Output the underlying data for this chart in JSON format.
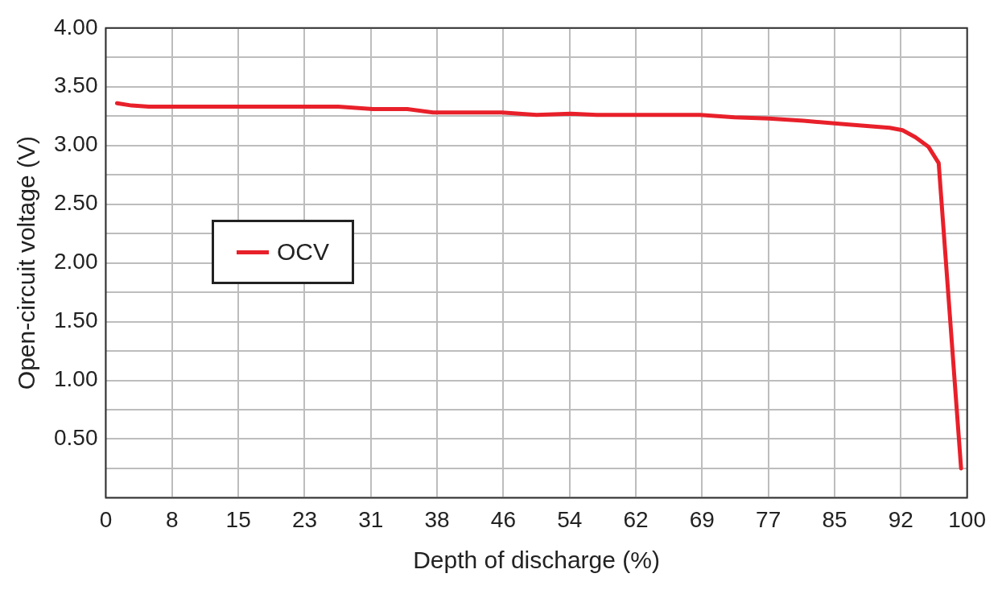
{
  "chart_data": {
    "type": "line",
    "xlabel": "Depth of discharge (%)",
    "ylabel": "Open-circuit voltage (V)",
    "xlim": [
      0,
      100
    ],
    "xticks": [
      {
        "value": 0,
        "label": "0"
      },
      {
        "value": 7.692,
        "label": "8"
      },
      {
        "value": 15.385,
        "label": "15"
      },
      {
        "value": 23.077,
        "label": "23"
      },
      {
        "value": 30.769,
        "label": "31"
      },
      {
        "value": 38.462,
        "label": "38"
      },
      {
        "value": 46.154,
        "label": "46"
      },
      {
        "value": 53.846,
        "label": "54"
      },
      {
        "value": 61.538,
        "label": "62"
      },
      {
        "value": 69.231,
        "label": "69"
      },
      {
        "value": 76.923,
        "label": "77"
      },
      {
        "value": 84.615,
        "label": "85"
      },
      {
        "value": 92.308,
        "label": "92"
      },
      {
        "value": 100,
        "label": "100"
      }
    ],
    "ylim": [
      0,
      4
    ],
    "yticks": [
      {
        "value": 0,
        "label": null
      },
      {
        "value": 0.25,
        "label": null
      },
      {
        "value": 0.5,
        "label": "0.50"
      },
      {
        "value": 0.75,
        "label": null
      },
      {
        "value": 1,
        "label": "1.00"
      },
      {
        "value": 1.25,
        "label": null
      },
      {
        "value": 1.5,
        "label": "1.50"
      },
      {
        "value": 1.75,
        "label": null
      },
      {
        "value": 2,
        "label": "2.00"
      },
      {
        "value": 2.25,
        "label": null
      },
      {
        "value": 2.5,
        "label": "2.50"
      },
      {
        "value": 2.75,
        "label": null
      },
      {
        "value": 3,
        "label": "3.00"
      },
      {
        "value": 3.25,
        "label": null
      },
      {
        "value": 3.5,
        "label": "3.50"
      },
      {
        "value": 3.75,
        "label": null
      },
      {
        "value": 4,
        "label": "4.00"
      }
    ],
    "grid": true,
    "legend": "left",
    "marker": "none",
    "line_style": "solid",
    "series": [
      {
        "name": "OCV",
        "color": "#e8202a",
        "x": [
          1.3,
          3,
          5,
          10,
          15,
          20,
          27,
          31,
          35,
          38,
          42,
          46,
          50,
          54,
          57,
          62,
          69,
          73,
          77,
          81,
          86,
          91,
          92.5,
          94,
          95.5,
          96.7,
          99.3
        ],
        "values": [
          3.36,
          3.34,
          3.33,
          3.33,
          3.33,
          3.33,
          3.33,
          3.31,
          3.31,
          3.28,
          3.28,
          3.28,
          3.26,
          3.27,
          3.26,
          3.26,
          3.26,
          3.24,
          3.23,
          3.21,
          3.18,
          3.15,
          3.13,
          3.07,
          2.99,
          2.85,
          0.25
        ]
      }
    ]
  }
}
